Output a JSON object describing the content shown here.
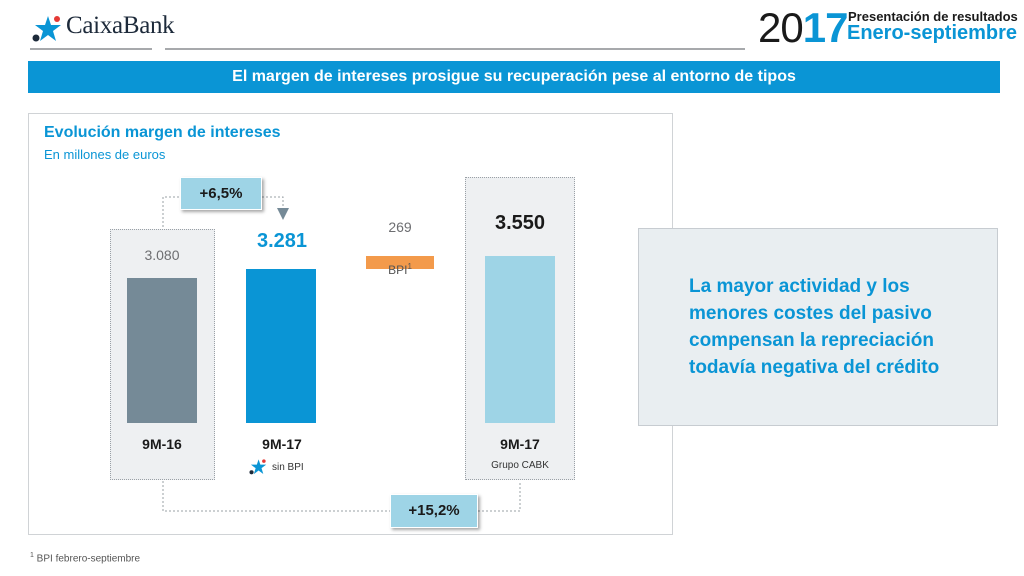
{
  "header": {
    "brand": "CaixaBank",
    "year_part1": "20",
    "year_part2": "17",
    "title": "Presentación de resultados",
    "subtitle": "Enero-septiembre"
  },
  "banner": "El margen de intereses prosigue su recuperación pese al entorno de tipos",
  "chart_data": {
    "type": "bar",
    "title": "Evolución margen de intereses",
    "subtitle": "En millones de euros",
    "categories": [
      "9M-16",
      "9M-17",
      "BPI",
      "9M-17"
    ],
    "category_subs": [
      "",
      "sin BPI",
      "",
      "Grupo CABK"
    ],
    "values": [
      3080,
      3281,
      269,
      3550
    ],
    "value_labels": [
      "3.080",
      "3.281",
      "269",
      "3.550"
    ],
    "bpi_label": "BPI",
    "bpi_sup": "1",
    "bar_colors": [
      "#758a97",
      "#0a95d5",
      "#f39a4b",
      "#9ed4e6"
    ],
    "ylim": [
      0,
      3600
    ],
    "growth_short": "+6,5%",
    "growth_total": "+15,2%"
  },
  "message": "La mayor actividad y los menores costes del pasivo compensan la repreciación todavía negativa del crédito",
  "footnote": {
    "sup": "1",
    "text": " BPI febrero-septiembre"
  },
  "colors": {
    "accent": "#0a95d5",
    "brand_dark": "#1d2a3a"
  }
}
